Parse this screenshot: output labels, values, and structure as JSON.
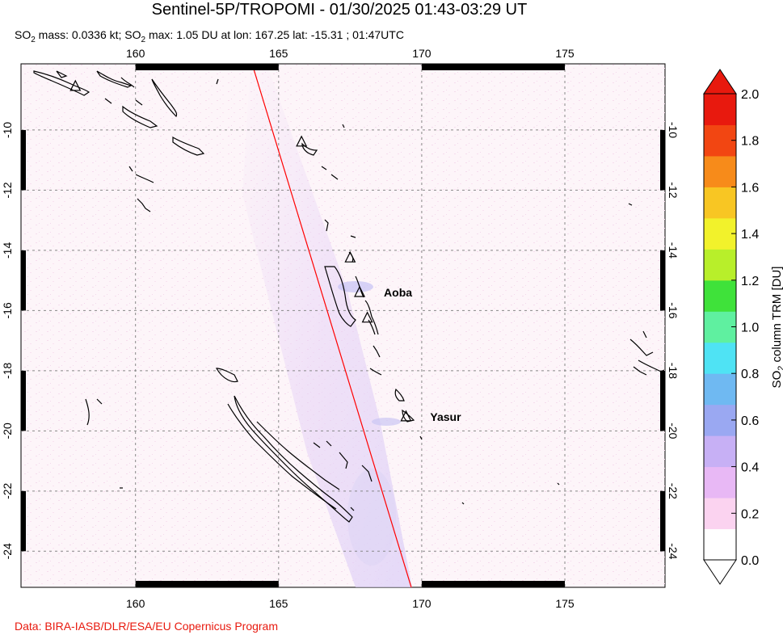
{
  "title": "Sentinel-5P/TROPOMI - 01/30/2025 01:43-03:29 UT",
  "subtitle": {
    "mass_label": "SO",
    "mass_sub": "2",
    "mass_text": " mass: 0.0336 kt; SO",
    "max_sub": "2",
    "max_text": " max: 1.05 DU at lon: 167.25 lat: -15.31 ; 01:47UTC"
  },
  "credit": "Data: BIRA-IASB/DLR/ESA/EU Copernicus Program",
  "map": {
    "lon_ticks": [
      "160",
      "165",
      "170",
      "175"
    ],
    "lat_ticks": [
      "-10",
      "-12",
      "-14",
      "-16",
      "-18",
      "-20",
      "-22",
      "-24"
    ],
    "lon_range": [
      156,
      178.5
    ],
    "lat_range": [
      -25.2,
      -7.8
    ],
    "volcanoes": [
      {
        "name": "Aoba",
        "lon": 167.83,
        "lat": -15.4
      },
      {
        "name": "Yasur",
        "lon": 169.45,
        "lat": -19.53
      }
    ],
    "unlabeled_volcano_markers": [
      {
        "lon": 157.9,
        "lat": -8.55
      },
      {
        "lon": 165.8,
        "lat": -10.4
      },
      {
        "lon": 167.5,
        "lat": -14.25
      },
      {
        "lon": 168.1,
        "lat": -16.25
      }
    ],
    "orbit_edge_color": "#ff0000"
  },
  "colorbar": {
    "label_main": "SO",
    "label_sub": "2",
    "label_rest": " column TRM [DU]",
    "ticks": [
      "2.0",
      "1.8",
      "1.6",
      "1.4",
      "1.2",
      "1.0",
      "0.8",
      "0.6",
      "0.4",
      "0.2",
      "0.0"
    ],
    "range": [
      0.0,
      2.0
    ],
    "colors": [
      "#ffffff",
      "#fbd3f0",
      "#e8b8f5",
      "#c7b0f5",
      "#9aa8f2",
      "#6fb9f2",
      "#4fe3f4",
      "#5ff0a0",
      "#3fe23a",
      "#b8ef2a",
      "#f2f22b",
      "#f8c623",
      "#f78b1a",
      "#f24612",
      "#e8190e"
    ]
  }
}
